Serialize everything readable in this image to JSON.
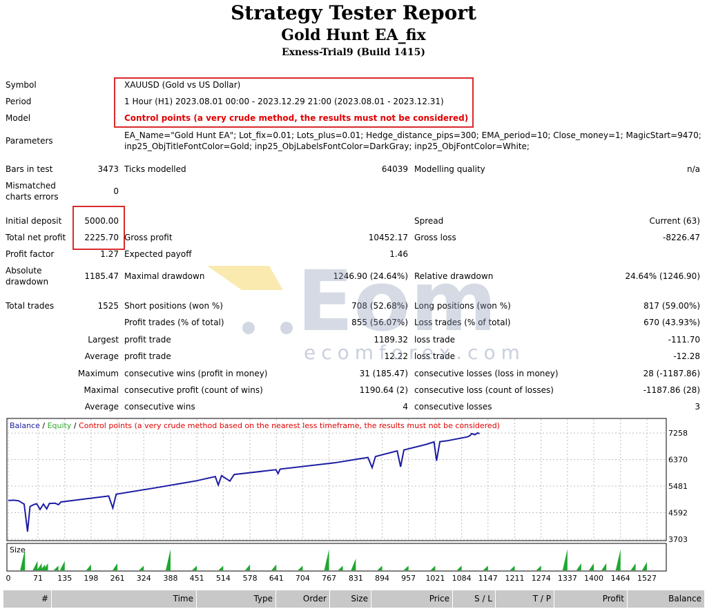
{
  "report": {
    "title": "Strategy Tester Report",
    "ea_name": "Gold Hunt EA_fix",
    "server": "Exness-Trial9 (Build 1415)"
  },
  "info": {
    "symbol_label": "Symbol",
    "symbol_value": "XAUUSD (Gold vs US Dollar)",
    "period_label": "Period",
    "period_value": "1 Hour (H1) 2023.08.01 00:00 - 2023.12.29 21:00 (2023.08.01 - 2023.12.31)",
    "model_label": "Model",
    "model_value": "Control points (a very crude method, the results must not be considered)",
    "parameters_label": "Parameters",
    "parameters_line1": "EA_Name=\"Gold Hunt EA\"; Lot_fix=0.01; Lots_plus=0.01; Hedge_distance_pips=300; EMA_period=10; Close_money=1; MagicStart=9470;",
    "parameters_line2": "inp25_ObjTitleFontColor=Gold; inp25_ObjLabelsFontColor=DarkGray; inp25_ObjFontColor=White;"
  },
  "stats": {
    "bars_label": "Bars in test",
    "bars_value": "3473",
    "ticks_label": "Ticks modelled",
    "ticks_value": "64039",
    "quality_label": "Modelling quality",
    "quality_value": "n/a",
    "mismatch_label1": "Mismatched",
    "mismatch_label2": "charts errors",
    "mismatch_value": "0",
    "deposit_label": "Initial deposit",
    "deposit_value": "5000.00",
    "spread_label": "Spread",
    "spread_value": "Current (63)",
    "netprofit_label": "Total net profit",
    "netprofit_value": "2225.70",
    "grossprofit_label": "Gross profit",
    "grossprofit_value": "10452.17",
    "grossloss_label": "Gross loss",
    "grossloss_value": "-8226.47",
    "pf_label": "Profit factor",
    "pf_value": "1.27",
    "payoff_label": "Expected payoff",
    "payoff_value": "1.46",
    "absdd_label1": "Absolute",
    "absdd_label2": "drawdown",
    "absdd_value": "1185.47",
    "maxdd_label": "Maximal drawdown",
    "maxdd_value": "1246.90 (24.64%)",
    "reldd_label": "Relative drawdown",
    "reldd_value": "24.64% (1246.90)",
    "trades_label": "Total trades",
    "trades_value": "1525",
    "short_label": "Short positions (won %)",
    "short_value": "708 (52.68%)",
    "long_label": "Long positions (won %)",
    "long_value": "817 (59.00%)",
    "ptrades_label": "Profit trades (% of total)",
    "ptrades_value": "855 (56.07%)",
    "ltrades_label": "Loss trades (% of total)",
    "ltrades_value": "670 (43.93%)",
    "largest_label": "Largest",
    "lp_label": "profit trade",
    "lp_value": "1189.32",
    "ll_label": "loss trade",
    "ll_value": "-111.70",
    "average_label": "Average",
    "ap_label": "profit trade",
    "ap_value": "12.22",
    "al_label": "loss trade",
    "al_value": "-12.28",
    "maximum_label": "Maximum",
    "mcw_label": "consecutive wins (profit in money)",
    "mcw_value": "31 (185.47)",
    "mcl_label": "consecutive losses (loss in money)",
    "mcl_value": "28 (-1187.86)",
    "maximal_label": "Maximal",
    "mcp_label": "consecutive profit (count of wins)",
    "mcp_value": "1190.64 (2)",
    "mclc_label": "consecutive loss (count of losses)",
    "mclc_value": "-1187.86 (28)",
    "average2_label": "Average",
    "acw_label": "consecutive wins",
    "acw_value": "4",
    "acl_label": "consecutive losses",
    "acl_value": "3"
  },
  "watermark": {
    "text": "ecomforex.com",
    "brand_color": "#5a6b8c",
    "accent_color": "#f3c51e"
  },
  "chart_data": {
    "type": "line",
    "legend": {
      "balance": "Balance",
      "sep1": " / ",
      "equity": "Equity",
      "sep2": " / ",
      "note": "Control points (a very crude method based on the nearest less timeframe, the results must not be considered)"
    },
    "colors": {
      "balance": "#1c1ca3",
      "equity": "#2fa82f",
      "note": "#e00000",
      "size": "#1fa82f"
    },
    "y_ticks": [
      7258,
      6370,
      5481,
      4592,
      3703
    ],
    "ylim": [
      3703,
      7700
    ],
    "x_ticks": [
      0,
      71,
      135,
      198,
      261,
      324,
      388,
      451,
      514,
      578,
      641,
      704,
      767,
      831,
      894,
      957,
      1021,
      1084,
      1147,
      1211,
      1274,
      1337,
      1400,
      1464,
      1527
    ],
    "xlim": [
      0,
      1570
    ],
    "size_label": "Size",
    "balance": [
      [
        0,
        5000
      ],
      [
        12,
        5010
      ],
      [
        25,
        4990
      ],
      [
        33,
        4920
      ],
      [
        38,
        4880
      ],
      [
        46,
        3960
      ],
      [
        52,
        4800
      ],
      [
        62,
        4870
      ],
      [
        68,
        4890
      ],
      [
        76,
        4700
      ],
      [
        84,
        4880
      ],
      [
        92,
        4720
      ],
      [
        98,
        4900
      ],
      [
        112,
        4910
      ],
      [
        120,
        4860
      ],
      [
        126,
        4950
      ],
      [
        200,
        5080
      ],
      [
        240,
        5150
      ],
      [
        250,
        4750
      ],
      [
        258,
        5210
      ],
      [
        350,
        5420
      ],
      [
        450,
        5660
      ],
      [
        495,
        5800
      ],
      [
        502,
        5520
      ],
      [
        510,
        5830
      ],
      [
        530,
        5650
      ],
      [
        540,
        5870
      ],
      [
        640,
        6030
      ],
      [
        645,
        5900
      ],
      [
        650,
        6050
      ],
      [
        780,
        6260
      ],
      [
        860,
        6440
      ],
      [
        870,
        6100
      ],
      [
        878,
        6470
      ],
      [
        930,
        6660
      ],
      [
        938,
        6130
      ],
      [
        946,
        6690
      ],
      [
        1000,
        6880
      ],
      [
        1018,
        6960
      ],
      [
        1024,
        6330
      ],
      [
        1032,
        6970
      ],
      [
        1050,
        7000
      ],
      [
        1098,
        7130
      ],
      [
        1104,
        7170
      ],
      [
        1108,
        7240
      ],
      [
        1116,
        7200
      ],
      [
        1122,
        7260
      ],
      [
        1127,
        7240
      ]
    ],
    "size_bars": [
      [
        40,
        0.9
      ],
      [
        70,
        0.4
      ],
      [
        80,
        0.3
      ],
      [
        88,
        0.25
      ],
      [
        95,
        0.3
      ],
      [
        120,
        0.2
      ],
      [
        135,
        0.4
      ],
      [
        198,
        0.25
      ],
      [
        261,
        0.3
      ],
      [
        324,
        0.2
      ],
      [
        388,
        0.9
      ],
      [
        451,
        0.2
      ],
      [
        514,
        0.2
      ],
      [
        578,
        0.25
      ],
      [
        641,
        0.25
      ],
      [
        704,
        0.2
      ],
      [
        767,
        0.9
      ],
      [
        800,
        0.2
      ],
      [
        831,
        0.5
      ],
      [
        894,
        0.2
      ],
      [
        957,
        0.2
      ],
      [
        1021,
        0.2
      ],
      [
        1084,
        0.2
      ],
      [
        1147,
        0.2
      ],
      [
        1211,
        0.2
      ],
      [
        1274,
        0.2
      ],
      [
        1337,
        0.9
      ],
      [
        1370,
        0.3
      ],
      [
        1400,
        0.3
      ],
      [
        1430,
        0.3
      ],
      [
        1464,
        0.9
      ],
      [
        1500,
        0.3
      ],
      [
        1527,
        0.35
      ]
    ]
  },
  "table_header": [
    "#",
    "Time",
    "Type",
    "Order",
    "Size",
    "Price",
    "S / L",
    "T / P",
    "Profit",
    "Balance"
  ]
}
